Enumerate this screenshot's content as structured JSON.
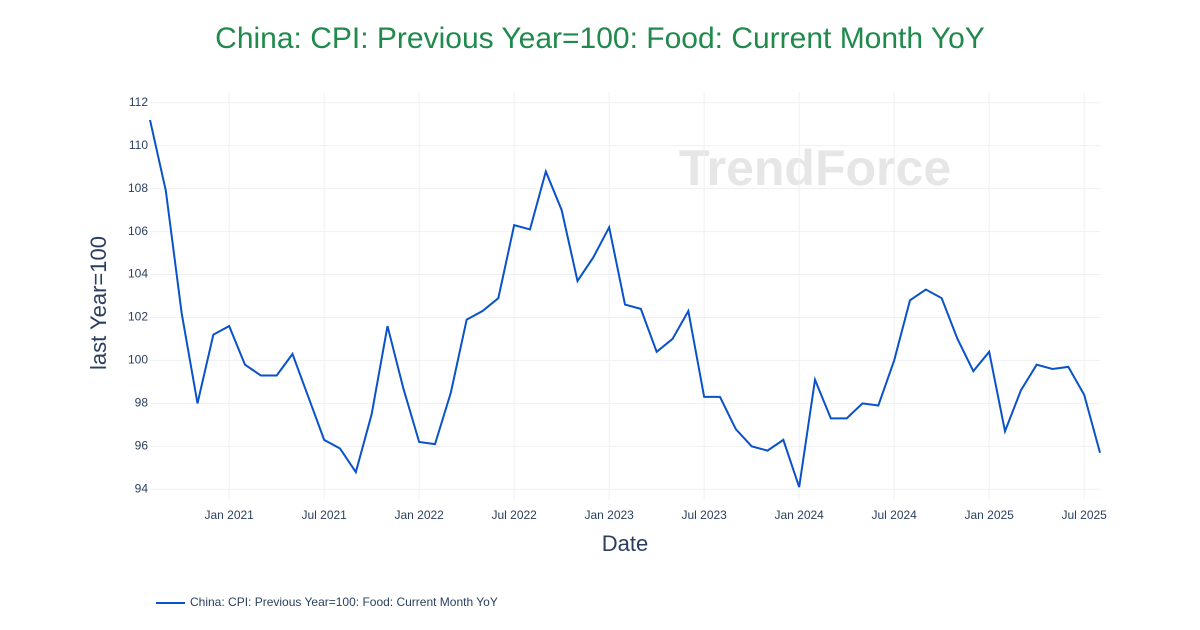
{
  "chart_data": {
    "type": "line",
    "title": "China: CPI: Previous Year=100: Food: Current Month YoY",
    "x_label": "Date",
    "y_label": "last Year=100",
    "watermark": "TrendForce",
    "x": [
      "2020-08",
      "2020-09",
      "2020-10",
      "2020-11",
      "2020-12",
      "2021-01",
      "2021-02",
      "2021-03",
      "2021-04",
      "2021-05",
      "2021-06",
      "2021-07",
      "2021-08",
      "2021-09",
      "2021-10",
      "2021-11",
      "2021-12",
      "2022-01",
      "2022-02",
      "2022-03",
      "2022-04",
      "2022-05",
      "2022-06",
      "2022-07",
      "2022-08",
      "2022-09",
      "2022-10",
      "2022-11",
      "2022-12",
      "2023-01",
      "2023-02",
      "2023-03",
      "2023-04",
      "2023-05",
      "2023-06",
      "2023-07",
      "2023-08",
      "2023-09",
      "2023-10",
      "2023-11",
      "2023-12",
      "2024-01",
      "2024-02",
      "2024-03",
      "2024-04",
      "2024-05",
      "2024-06",
      "2024-07",
      "2024-08",
      "2024-09",
      "2024-10",
      "2024-11",
      "2024-12",
      "2025-01",
      "2025-02",
      "2025-03",
      "2025-04",
      "2025-05",
      "2025-06",
      "2025-07",
      "2025-08"
    ],
    "series": [
      {
        "name": "China: CPI: Previous Year=100: Food: Current Month YoY",
        "color": "#0a52c9",
        "values": [
          111.2,
          107.9,
          102.2,
          98.0,
          101.2,
          101.6,
          99.8,
          99.3,
          99.3,
          100.3,
          98.3,
          96.3,
          95.9,
          94.8,
          97.5,
          101.6,
          98.7,
          96.2,
          96.1,
          98.5,
          101.9,
          102.3,
          102.9,
          106.3,
          106.1,
          108.8,
          107.0,
          103.7,
          104.8,
          106.2,
          102.6,
          102.4,
          100.4,
          101.0,
          102.3,
          98.3,
          98.3,
          96.8,
          96.0,
          95.8,
          96.3,
          94.1,
          99.1,
          97.3,
          97.3,
          98.0,
          97.9,
          100.0,
          102.8,
          103.3,
          102.9,
          101.0,
          99.5,
          100.4,
          96.7,
          98.6,
          99.8,
          99.6,
          99.7,
          98.4,
          95.7
        ]
      }
    ],
    "xlim": [
      "2020-08",
      "2025-08"
    ],
    "xticks": [
      {
        "value": "2021-01",
        "label": "Jan 2021"
      },
      {
        "value": "2021-07",
        "label": "Jul 2021"
      },
      {
        "value": "2022-01",
        "label": "Jan 2022"
      },
      {
        "value": "2022-07",
        "label": "Jul 2022"
      },
      {
        "value": "2023-01",
        "label": "Jan 2023"
      },
      {
        "value": "2023-07",
        "label": "Jul 2023"
      },
      {
        "value": "2024-01",
        "label": "Jan 2024"
      },
      {
        "value": "2024-07",
        "label": "Jul 2024"
      },
      {
        "value": "2025-01",
        "label": "Jan 2025"
      },
      {
        "value": "2025-07",
        "label": "Jul 2025"
      }
    ],
    "ylim": [
      93.5,
      112.5
    ],
    "yticks": [
      94,
      96,
      98,
      100,
      102,
      104,
      106,
      108,
      110,
      112
    ],
    "grid": true
  }
}
